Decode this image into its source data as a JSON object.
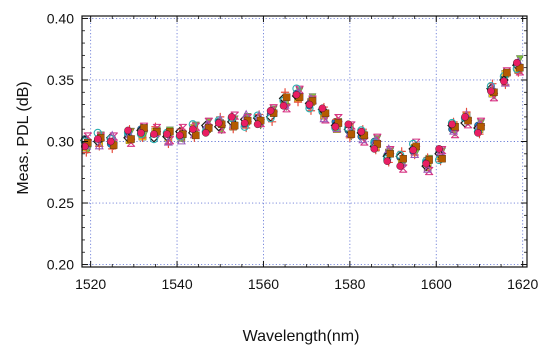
{
  "chart_data": {
    "type": "scatter",
    "xlabel": "Wavelength(nm)",
    "ylabel": "Meas. PDL (dB)",
    "xlim": [
      1518,
      1621
    ],
    "ylim": [
      0.198,
      0.402
    ],
    "xticks": [
      1520,
      1540,
      1560,
      1580,
      1600,
      1620
    ],
    "yticks": [
      0.2,
      0.25,
      0.3,
      0.35,
      0.4
    ],
    "xtick_labels": [
      "1520",
      "1540",
      "1560",
      "1580",
      "1600",
      "1620"
    ],
    "ytick_labels": [
      "0.20",
      "0.25",
      "0.30",
      "0.35",
      "0.40"
    ],
    "grid": true,
    "grid_style": "dotted",
    "x": [
      1519,
      1522,
      1525,
      1529,
      1532,
      1535,
      1538,
      1541,
      1544,
      1547,
      1550,
      1553,
      1556,
      1559,
      1562,
      1565,
      1568,
      1571,
      1574,
      1577,
      1580,
      1583,
      1586,
      1589,
      1592,
      1595,
      1598,
      1601,
      1604,
      1607,
      1610,
      1613,
      1616,
      1619
    ],
    "y": [
      0.299,
      0.301,
      0.3,
      0.304,
      0.308,
      0.306,
      0.304,
      0.306,
      0.309,
      0.312,
      0.314,
      0.316,
      0.316,
      0.318,
      0.322,
      0.332,
      0.338,
      0.331,
      0.323,
      0.314,
      0.309,
      0.305,
      0.298,
      0.289,
      0.286,
      0.294,
      0.282,
      0.289,
      0.311,
      0.318,
      0.311,
      0.341,
      0.352,
      0.361
    ],
    "series": [
      {
        "marker": "circle",
        "color": "#1f7cc5",
        "offsets": [
          0.003,
          0.0,
          -0.002,
          0.001,
          0.002,
          -0.001,
          0.001,
          0.002,
          -0.001,
          0.0,
          0.002,
          0.001,
          -0.002,
          0.001,
          0.0,
          0.002,
          0.001,
          -0.002,
          0.001,
          0.002,
          0.0,
          -0.001,
          0.002,
          0.0,
          0.001,
          -0.002,
          0.001,
          0.002,
          -0.001,
          0.0,
          0.002,
          0.001,
          -0.001,
          0.002
        ]
      },
      {
        "marker": "square",
        "color": "#f0c419",
        "offsets": [
          -0.004,
          -0.002,
          0.001,
          -0.003,
          -0.004,
          0.002,
          -0.001,
          -0.003,
          0.002,
          -0.002,
          0.001,
          -0.004,
          0.0,
          -0.002,
          0.002,
          0.001,
          -0.003,
          0.001,
          -0.002,
          -0.004,
          0.003,
          0.001,
          -0.003,
          0.002,
          -0.002,
          0.001,
          -0.003,
          -0.001,
          0.002,
          0.003,
          -0.001,
          -0.002,
          0.003,
          -0.003
        ]
      },
      {
        "marker": "triangle-down",
        "color": "#7fbf3f",
        "offsets": [
          -0.006,
          0.004,
          -0.004,
          0.004,
          -0.003,
          0.003,
          0.005,
          -0.004,
          0.004,
          0.004,
          -0.005,
          0.002,
          0.004,
          -0.005,
          0.004,
          -0.004,
          0.003,
          0.005,
          -0.003,
          0.002,
          -0.005,
          -0.002,
          0.004,
          0.003,
          -0.004,
          -0.003,
          0.004,
          0.003,
          -0.004,
          -0.002,
          0.004,
          -0.004,
          0.002,
          0.006
        ]
      },
      {
        "marker": "diamond",
        "color": "#1a1a1a",
        "offsets": [
          0.002,
          -0.001,
          0.003,
          -0.001,
          0.001,
          -0.003,
          0.0,
          0.002,
          -0.002,
          0.001,
          -0.002,
          0.0,
          0.002,
          0.001,
          -0.002,
          0.003,
          -0.001,
          0.0,
          0.003,
          -0.001,
          0.001,
          0.002,
          -0.002,
          -0.001,
          0.002,
          0.0,
          -0.002,
          0.001,
          0.002,
          -0.003,
          0.0,
          0.002,
          -0.002,
          0.001
        ]
      },
      {
        "marker": "cross",
        "color": "#e74c3c",
        "offsets": [
          -0.008,
          -0.005,
          -0.006,
          0.006,
          -0.005,
          0.006,
          -0.006,
          0.004,
          -0.006,
          -0.003,
          0.006,
          -0.006,
          -0.005,
          0.004,
          -0.006,
          0.008,
          -0.006,
          -0.006,
          0.005,
          0.004,
          -0.006,
          0.005,
          -0.005,
          -0.006,
          0.006,
          -0.005,
          0.005,
          -0.005,
          0.005,
          0.006,
          -0.005,
          0.006,
          -0.006,
          -0.005
        ]
      },
      {
        "marker": "bowtie",
        "color": "#d63384",
        "offsets": [
          0.005,
          0.003,
          0.004,
          -0.005,
          0.004,
          0.005,
          -0.003,
          0.005,
          0.003,
          0.004,
          -0.004,
          0.005,
          0.003,
          -0.003,
          0.005,
          -0.005,
          0.004,
          0.003,
          -0.005,
          0.005,
          0.004,
          -0.005,
          0.005,
          0.004,
          -0.008,
          0.005,
          -0.006,
          0.004,
          -0.005,
          -0.004,
          0.005,
          -0.005,
          0.005,
          -0.004
        ]
      },
      {
        "marker": "circle-open",
        "color": "#2ab0b0",
        "offsets": [
          0.001,
          0.006,
          0.002,
          0.003,
          -0.002,
          -0.004,
          0.003,
          -0.002,
          0.005,
          -0.004,
          0.003,
          0.003,
          -0.004,
          0.003,
          -0.003,
          0.001,
          0.005,
          -0.004,
          0.002,
          -0.003,
          0.002,
          0.004,
          0.001,
          -0.003,
          0.003,
          0.004,
          0.002,
          -0.004,
          0.004,
          0.001,
          -0.003,
          0.004,
          0.001,
          -0.002
        ]
      },
      {
        "marker": "triangle-up",
        "color": "#9b59b6",
        "offsets": [
          -0.002,
          -0.004,
          0.005,
          0.002,
          0.003,
          0.001,
          -0.004,
          -0.005,
          -0.003,
          0.002,
          0.004,
          -0.002,
          0.006,
          0.003,
          0.003,
          -0.002,
          0.002,
          0.004,
          -0.004,
          -0.003,
          -0.002,
          -0.003,
          0.003,
          0.005,
          -0.003,
          -0.004,
          -0.004,
          0.003,
          -0.002,
          0.004,
          0.003,
          0.003,
          -0.004,
          0.004
        ]
      },
      {
        "marker": "square",
        "color": "#b45a00",
        "offsets": [
          0.0,
          0.002,
          -0.003,
          -0.002,
          0.003,
          0.002,
          0.004,
          0.0,
          -0.004,
          -0.001,
          0.0,
          -0.003,
          0.001,
          -0.001,
          0.001,
          0.004,
          -0.002,
          0.002,
          0.0,
          0.001,
          -0.003,
          0.0,
          0.0,
          0.001,
          0.0,
          0.002,
          0.003,
          -0.003,
          0.001,
          -0.001,
          0.001,
          -0.001,
          0.004,
          -0.001
        ]
      },
      {
        "marker": "circle",
        "color": "#e91e63",
        "offsets": [
          -0.003,
          0.001,
          0.0,
          0.005,
          -0.001,
          0.0,
          0.002,
          -0.001,
          0.001,
          -0.005,
          0.001,
          0.004,
          -0.001,
          -0.004,
          0.003,
          -0.003,
          0.0,
          -0.001,
          0.004,
          -0.002,
          0.005,
          0.003,
          -0.004,
          -0.005,
          -0.006,
          -0.001,
          0.0,
          0.005,
          0.003,
          0.002,
          -0.004,
          0.0,
          -0.003,
          0.003
        ]
      }
    ]
  }
}
